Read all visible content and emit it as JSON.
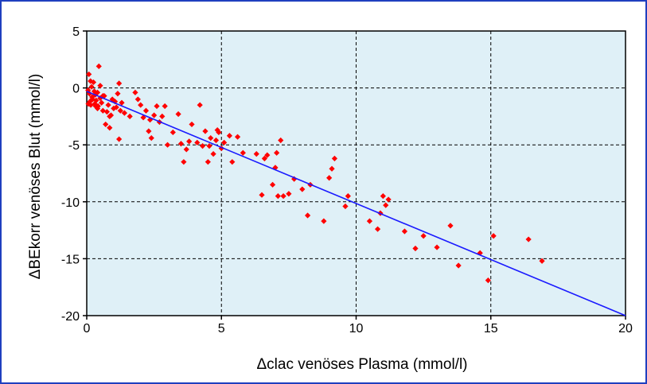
{
  "colors": {
    "frame_border": "#1f3fbf",
    "plot_background": "#dff0f7",
    "grid": "#000000",
    "points": "#ff0000",
    "regression_line": "#1a1aff"
  },
  "chart_data": {
    "type": "scatter",
    "title": "",
    "xlabel": "Δclac venöses Plasma (mmol/l)",
    "ylabel": "ΔBEkorr venöses Blut (mmol/l)",
    "xlim": [
      0,
      20
    ],
    "ylim": [
      -20,
      5
    ],
    "xticks": [
      "0",
      "5",
      "10",
      "15",
      "20"
    ],
    "yticks": [
      "5",
      "0",
      "-5",
      "-10",
      "-15",
      "-20"
    ],
    "grid": true,
    "grid_style": "dashed",
    "regression_line": {
      "x": [
        0,
        20
      ],
      "y": [
        -0.3,
        -20
      ]
    },
    "series": [
      {
        "marker": "diamond",
        "x": [
          0.05,
          0.08,
          0.1,
          0.12,
          0.15,
          0.18,
          0.2,
          0.22,
          0.25,
          0.28,
          0.3,
          0.32,
          0.35,
          0.4,
          0.42,
          0.45,
          0.5,
          0.5,
          0.55,
          0.6,
          0.65,
          0.7,
          0.75,
          0.8,
          0.85,
          0.9,
          0.95,
          1.0,
          1.05,
          1.1,
          1.15,
          1.2,
          1.2,
          1.25,
          1.4,
          1.6,
          1.8,
          1.9,
          2.0,
          2.1,
          2.2,
          2.3,
          2.35,
          2.4,
          2.5,
          2.6,
          2.7,
          2.8,
          2.9,
          3.0,
          3.2,
          3.4,
          3.5,
          3.6,
          3.7,
          3.8,
          3.9,
          4.1,
          4.2,
          4.3,
          4.4,
          4.5,
          4.55,
          4.6,
          4.7,
          4.8,
          4.85,
          4.9,
          5.0,
          5.1,
          5.3,
          5.4,
          5.6,
          5.8,
          6.3,
          6.5,
          6.6,
          6.7,
          6.9,
          7.0,
          7.05,
          7.1,
          7.2,
          7.3,
          7.5,
          7.7,
          8.0,
          8.2,
          8.3,
          8.8,
          9.0,
          9.1,
          9.2,
          9.6,
          9.7,
          10.5,
          10.8,
          10.9,
          11.0,
          11.1,
          11.2,
          11.8,
          12.2,
          12.5,
          13.0,
          13.5,
          13.8,
          14.6,
          14.9,
          15.1,
          16.4,
          16.9,
          0.06,
          0.14,
          0.33,
          0.6,
          0.85,
          1.3,
          0.4,
          0.2
        ],
        "y": [
          -0.2,
          1.2,
          -0.5,
          -1.2,
          -1.5,
          0.1,
          -0.8,
          -1.0,
          0.5,
          -0.3,
          -1.4,
          -0.6,
          -1.1,
          -0.4,
          -1.6,
          1.9,
          -0.9,
          0.2,
          -1.3,
          -2.0,
          -0.7,
          -3.2,
          -2.1,
          -1.5,
          -3.5,
          -2.4,
          -1.0,
          -1.8,
          -1.2,
          -1.7,
          -0.5,
          -4.5,
          0.4,
          -2.0,
          -2.2,
          -2.5,
          -0.4,
          -1.0,
          -1.5,
          -2.6,
          -2.0,
          -3.8,
          -2.8,
          -4.4,
          -2.4,
          -1.6,
          -3.0,
          -2.5,
          -1.6,
          -5.0,
          -3.9,
          -2.3,
          -4.9,
          -6.5,
          -5.4,
          -4.7,
          -3.2,
          -4.8,
          -1.5,
          -5.1,
          -3.8,
          -6.5,
          -5.1,
          -4.4,
          -5.8,
          -4.6,
          -3.7,
          -3.9,
          -5.3,
          -4.8,
          -4.2,
          -6.5,
          -4.3,
          -5.7,
          -5.8,
          -9.4,
          -6.2,
          -5.9,
          -8.5,
          -7.0,
          -5.7,
          -9.5,
          -4.6,
          -9.5,
          -9.3,
          -8.0,
          -8.9,
          -11.2,
          -8.5,
          -11.7,
          -7.9,
          -7.1,
          -6.2,
          -10.4,
          -9.5,
          -11.7,
          -12.4,
          -11.0,
          -9.5,
          -10.3,
          -9.8,
          -12.6,
          -14.1,
          -13.0,
          -14.0,
          -12.1,
          -15.6,
          -14.5,
          -16.9,
          -13.0,
          -13.3,
          -15.2,
          -1.4,
          0.6,
          -1.6,
          -0.7,
          -2.5,
          -1.3,
          -1.8,
          -1.0
        ]
      }
    ]
  }
}
